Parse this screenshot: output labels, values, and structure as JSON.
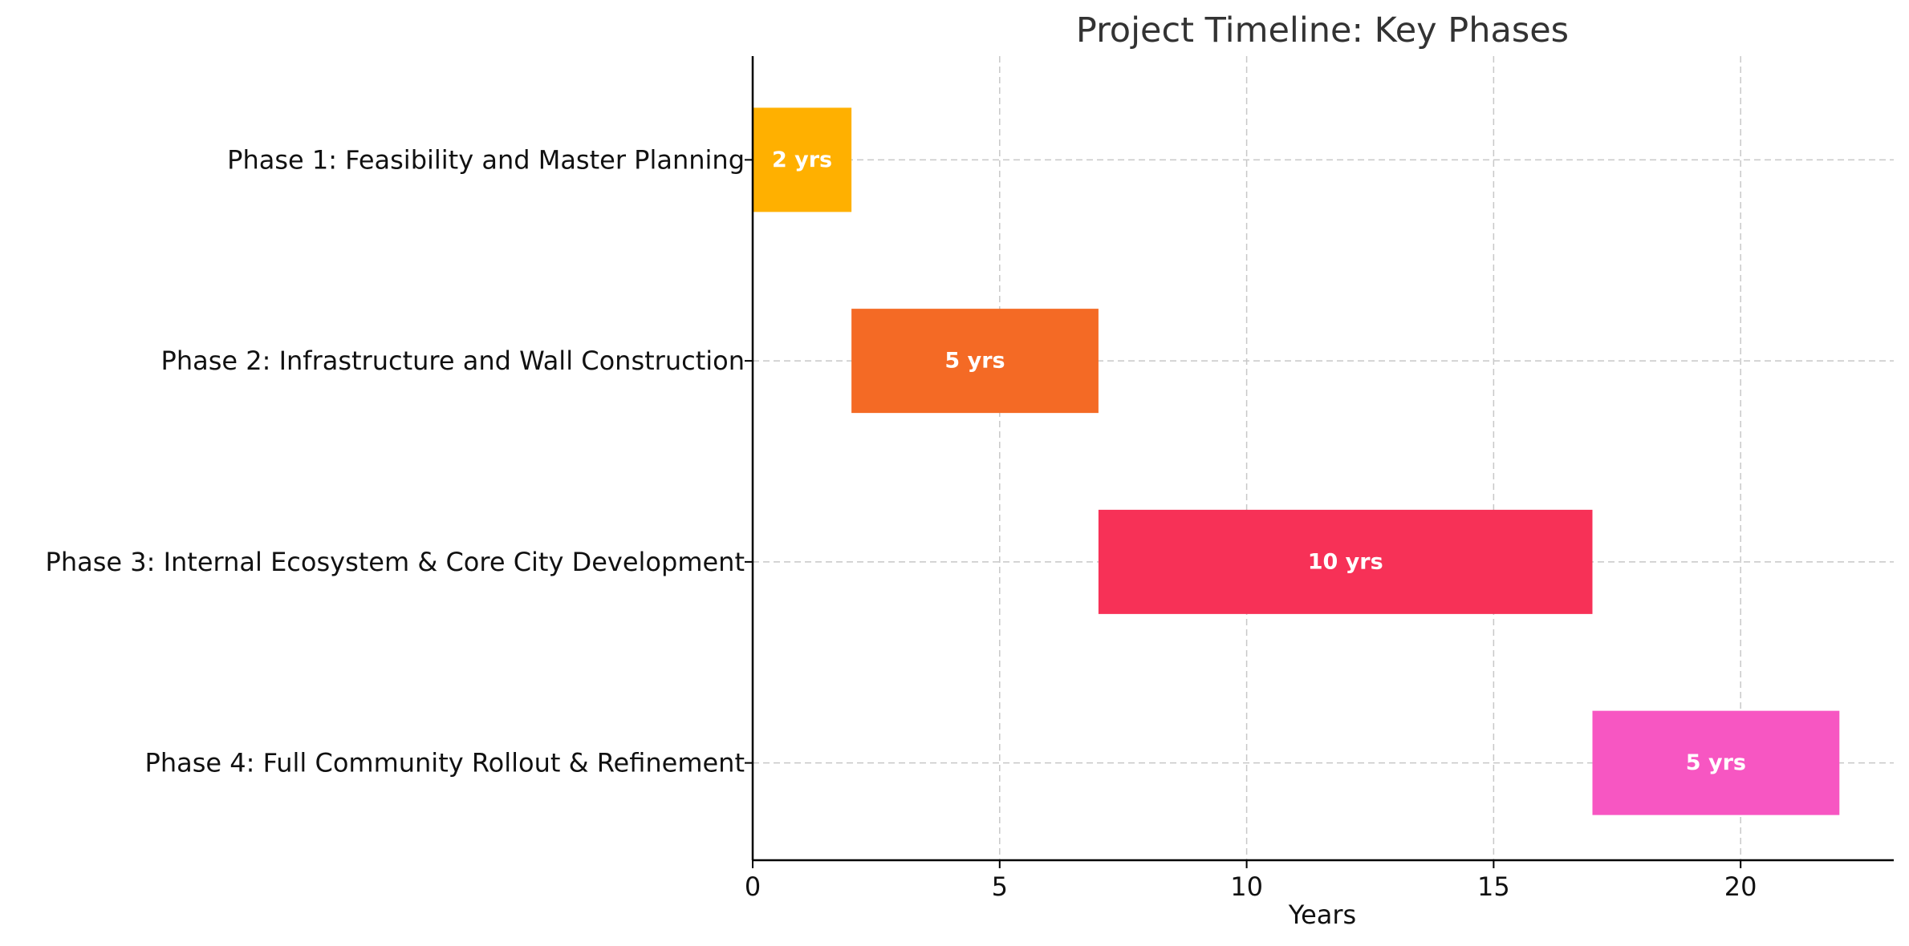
{
  "chart_data": {
    "type": "bar",
    "orientation": "horizontal",
    "title": "Project Timeline: Key Phases",
    "xlabel": "Years",
    "ylabel": "",
    "xlim": [
      0,
      23.1
    ],
    "xticks": [
      0,
      5,
      10,
      15,
      20
    ],
    "grid": true,
    "legend": "none",
    "tasks": [
      {
        "name": "Phase 1: Feasibility and Master Planning",
        "start": 0,
        "duration": 2,
        "label": "2 yrs",
        "color": "#FFB000"
      },
      {
        "name": "Phase 2: Infrastructure and Wall Construction",
        "start": 2,
        "duration": 5,
        "label": "5 yrs",
        "color": "#F46A25"
      },
      {
        "name": "Phase 3: Internal Ecosystem & Core City Development",
        "start": 7,
        "duration": 10,
        "label": "10 yrs",
        "color": "#F73157"
      },
      {
        "name": "Phase 4: Full Community Rollout & Refinement",
        "start": 17,
        "duration": 5,
        "label": "5 yrs",
        "color": "#F756C2"
      }
    ]
  }
}
